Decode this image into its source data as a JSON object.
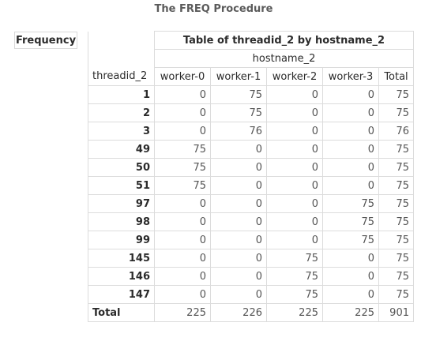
{
  "procedure_title": "The FREQ Procedure",
  "legend_label": "Frequency",
  "table_title": "Table of threadid_2 by hostname_2",
  "column_variable": "hostname_2",
  "row_variable": "threadid_2",
  "columns": [
    "worker-0",
    "worker-1",
    "worker-2",
    "worker-3",
    "Total"
  ],
  "rows": [
    {
      "label": "1",
      "values": [
        "0",
        "75",
        "0",
        "0",
        "75"
      ]
    },
    {
      "label": "2",
      "values": [
        "0",
        "75",
        "0",
        "0",
        "75"
      ]
    },
    {
      "label": "3",
      "values": [
        "0",
        "76",
        "0",
        "0",
        "76"
      ]
    },
    {
      "label": "49",
      "values": [
        "75",
        "0",
        "0",
        "0",
        "75"
      ]
    },
    {
      "label": "50",
      "values": [
        "75",
        "0",
        "0",
        "0",
        "75"
      ]
    },
    {
      "label": "51",
      "values": [
        "75",
        "0",
        "0",
        "0",
        "75"
      ]
    },
    {
      "label": "97",
      "values": [
        "0",
        "0",
        "0",
        "75",
        "75"
      ]
    },
    {
      "label": "98",
      "values": [
        "0",
        "0",
        "0",
        "75",
        "75"
      ]
    },
    {
      "label": "99",
      "values": [
        "0",
        "0",
        "0",
        "75",
        "75"
      ]
    },
    {
      "label": "145",
      "values": [
        "0",
        "0",
        "75",
        "0",
        "75"
      ]
    },
    {
      "label": "146",
      "values": [
        "0",
        "0",
        "75",
        "0",
        "75"
      ]
    },
    {
      "label": "147",
      "values": [
        "0",
        "0",
        "75",
        "0",
        "75"
      ]
    }
  ],
  "total_row": {
    "label": "Total",
    "values": [
      "225",
      "226",
      "225",
      "225",
      "901"
    ]
  },
  "colors": {
    "border": "#dcdcdc",
    "title_text": "#5b5b5b"
  }
}
